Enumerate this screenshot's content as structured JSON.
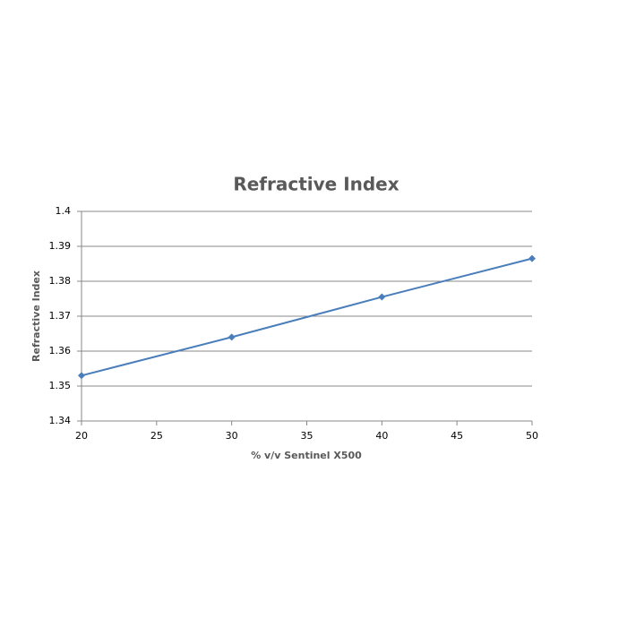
{
  "chart_data": {
    "type": "line",
    "title": "Refractive Index",
    "x_label": "% v/v Sentinel X500",
    "y_label": "Refractive Index",
    "x": [
      20,
      30,
      40,
      50
    ],
    "series": [
      {
        "name": "Refractive Index",
        "color": "#4a7ebb",
        "values": [
          1.353,
          1.364,
          1.3755,
          1.3865
        ]
      }
    ],
    "xlim": [
      20,
      50
    ],
    "xticks": [
      20,
      25,
      30,
      35,
      40,
      45,
      50
    ],
    "ylim": [
      1.34,
      1.4
    ],
    "yticks": [
      1.34,
      1.35,
      1.36,
      1.37,
      1.38,
      1.39,
      1.4
    ],
    "grid": true
  }
}
